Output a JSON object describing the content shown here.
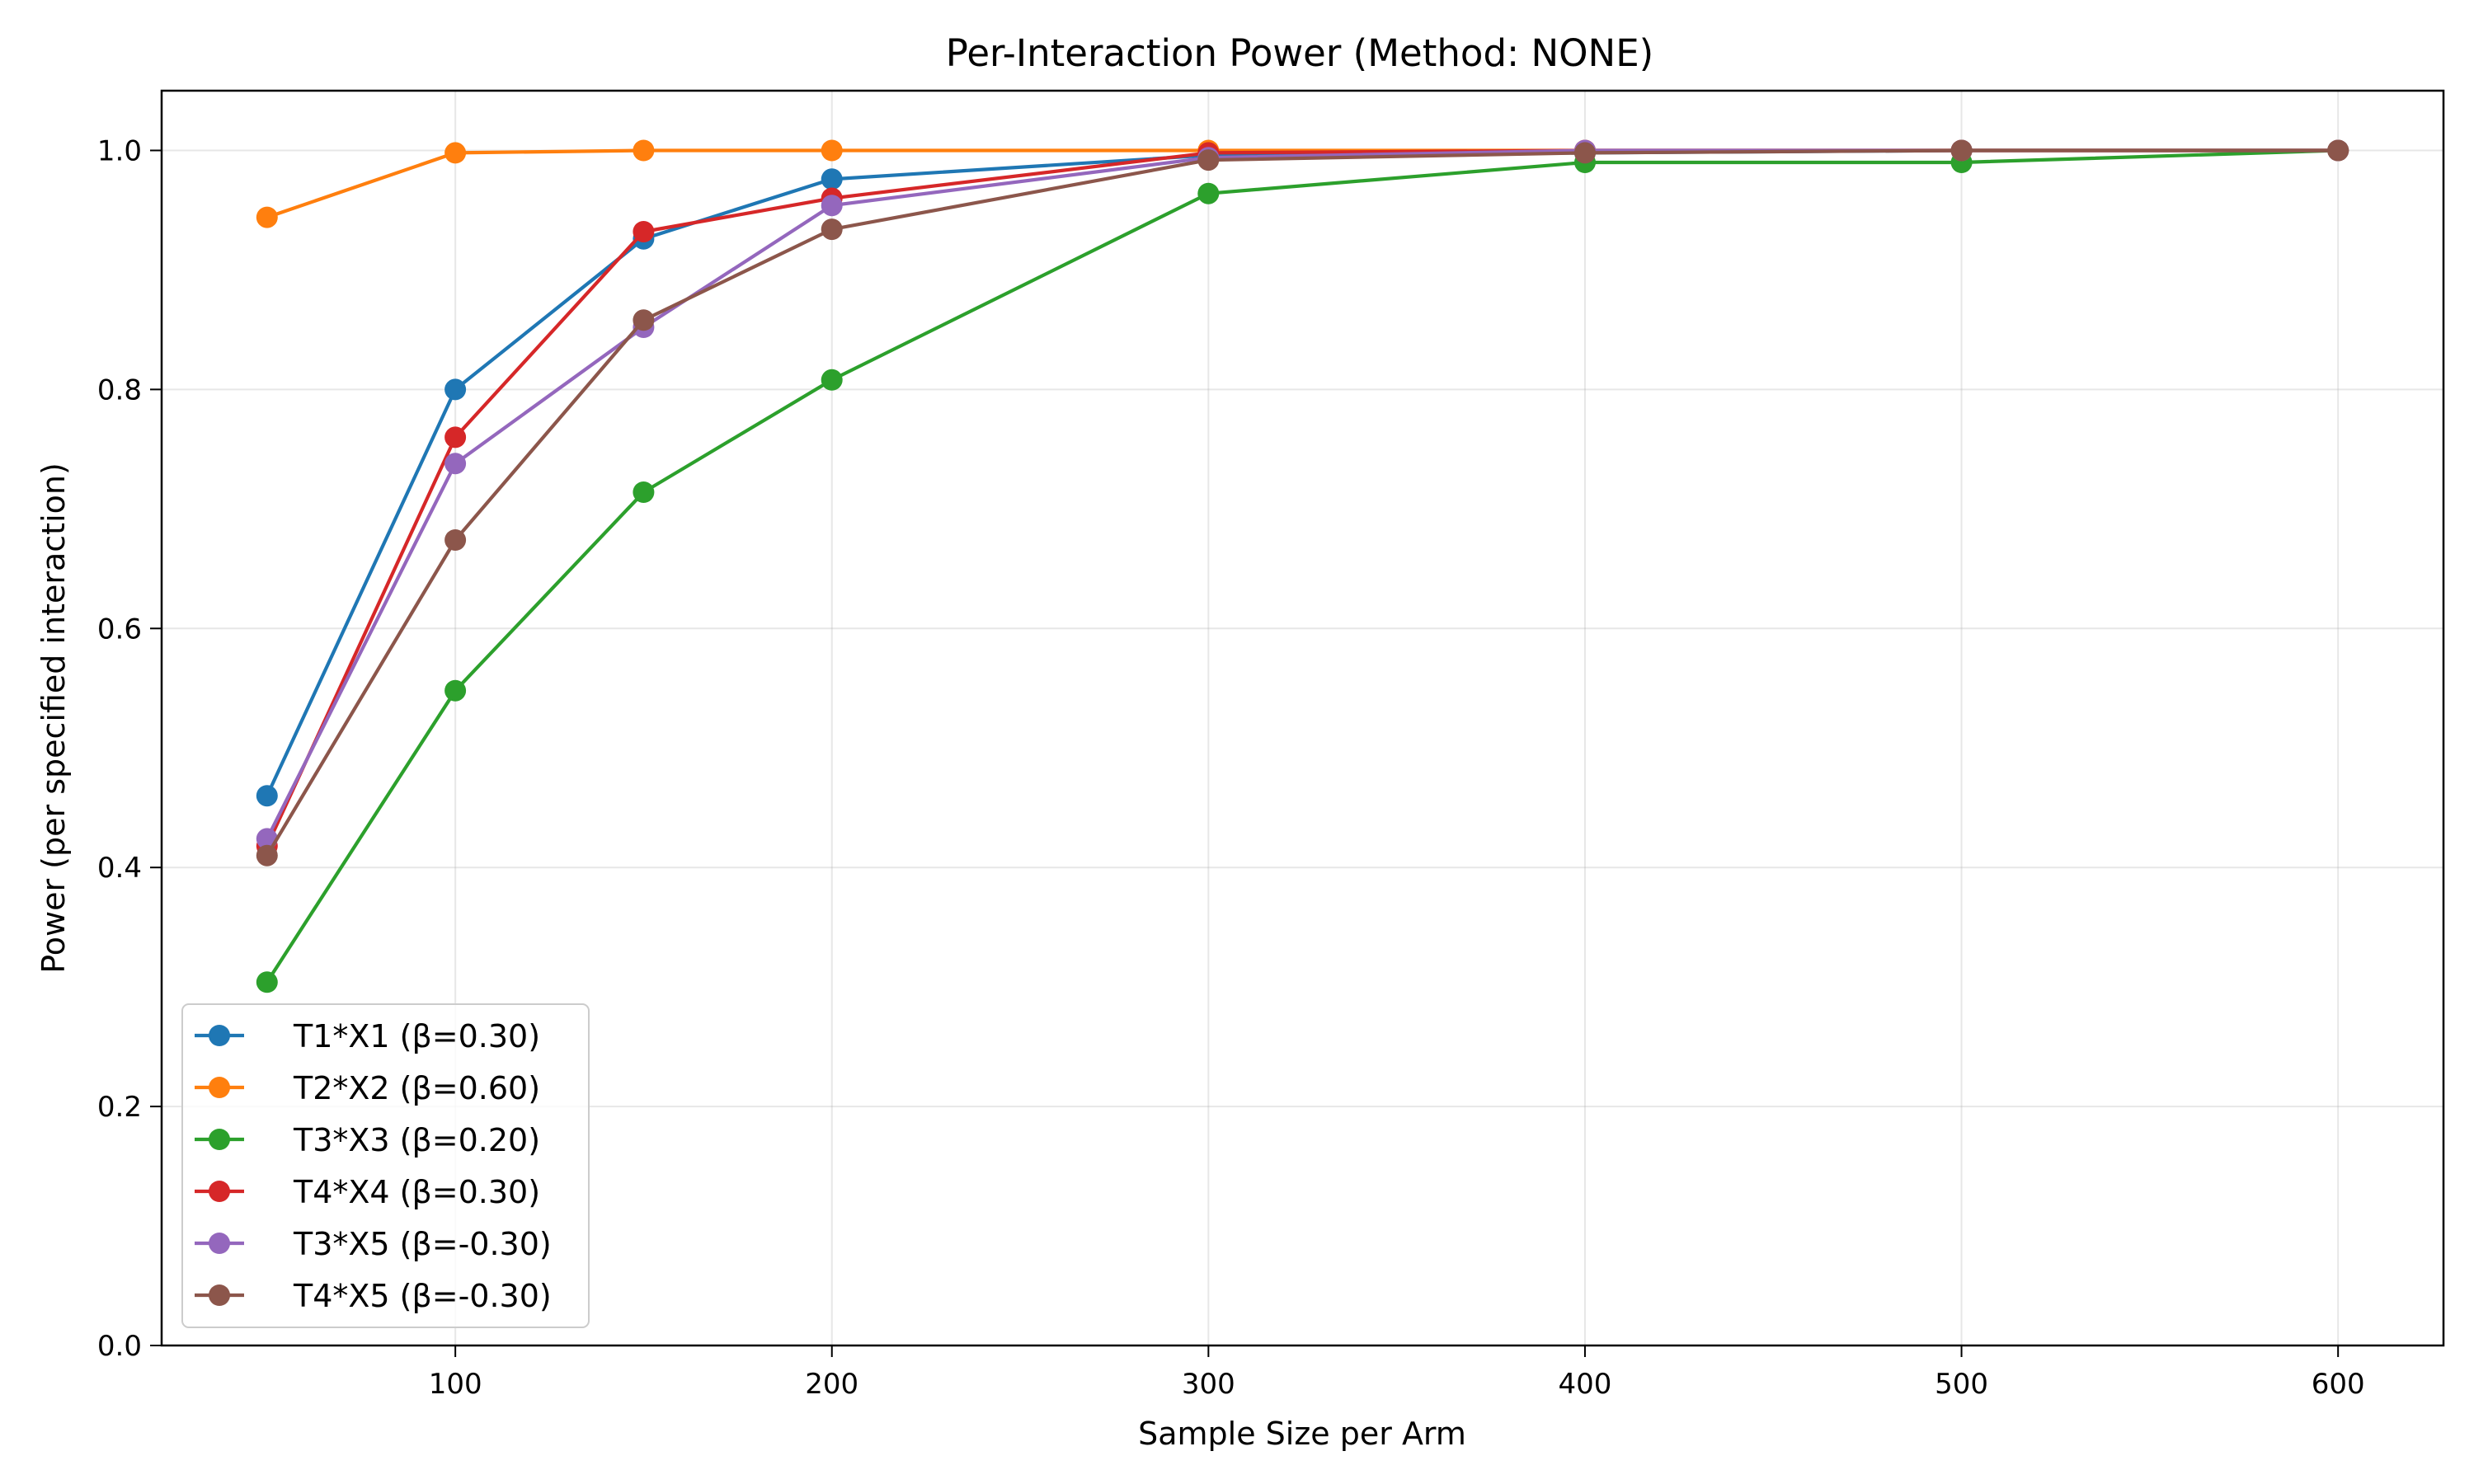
{
  "chart_data": {
    "type": "line",
    "title": "Per-Interaction Power (Method: NONE)",
    "xlabel": "Sample Size per Arm",
    "ylabel": "Power (per specified interaction)",
    "x": [
      50,
      100,
      150,
      200,
      300,
      400,
      500,
      600
    ],
    "xlim": [
      22,
      628
    ],
    "ylim": [
      0.0,
      1.05
    ],
    "xticks": [
      100,
      200,
      300,
      400,
      500,
      600
    ],
    "yticks": [
      0.0,
      0.2,
      0.4,
      0.6,
      0.8,
      1.0
    ],
    "xtick_labels": [
      "100",
      "200",
      "300",
      "400",
      "500",
      "600"
    ],
    "ytick_labels": [
      "0.0",
      "0.2",
      "0.4",
      "0.6",
      "0.8",
      "1.0"
    ],
    "grid": true,
    "legend_position": "lower-left",
    "series": [
      {
        "name": "T1*X1 (β=0.30)",
        "color": "#1f77b4",
        "values": [
          0.46,
          0.8,
          0.926,
          0.976,
          0.996,
          0.998,
          1.0,
          1.0
        ]
      },
      {
        "name": "T2*X2 (β=0.60)",
        "color": "#ff7f0e",
        "values": [
          0.944,
          0.998,
          1.0,
          1.0,
          1.0,
          1.0,
          1.0,
          1.0
        ]
      },
      {
        "name": "T3*X3 (β=0.20)",
        "color": "#2ca02c",
        "values": [
          0.304,
          0.548,
          0.714,
          0.808,
          0.964,
          0.99,
          0.99,
          1.0
        ]
      },
      {
        "name": "T4*X4 (β=0.30)",
        "color": "#d62728",
        "values": [
          0.418,
          0.76,
          0.932,
          0.96,
          0.998,
          1.0,
          1.0,
          1.0
        ]
      },
      {
        "name": "T3*X5 (β=-0.30)",
        "color": "#9467bd",
        "values": [
          0.424,
          0.738,
          0.852,
          0.954,
          0.994,
          1.0,
          1.0,
          1.0
        ]
      },
      {
        "name": "T4*X5 (β=-0.30)",
        "color": "#8c564b",
        "values": [
          0.41,
          0.674,
          0.858,
          0.934,
          0.992,
          0.998,
          1.0,
          1.0
        ]
      }
    ]
  }
}
